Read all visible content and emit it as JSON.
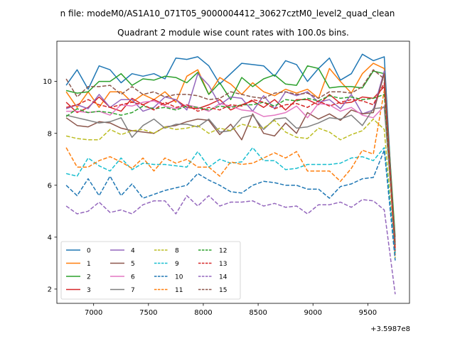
{
  "suptitle": "n file: modeM0/AS1A10_071T05_9000004412_30627cztM0_level2_quad_clean",
  "chart_data": {
    "type": "line",
    "title": "Quadrant 2 module wise count rates with 100.0s bins.",
    "xlabel": "",
    "ylabel": "",
    "x_offset_label": "+3.5987e8",
    "xlim": [
      6665,
      9880
    ],
    "ylim": [
      1.45,
      11.55
    ],
    "xticks": [
      7000,
      7500,
      8000,
      8500,
      9000,
      9500
    ],
    "yticks": [
      2,
      4,
      6,
      8,
      10
    ],
    "legend_position": "lower-left",
    "grid": false,
    "x": [
      6750,
      6850,
      6950,
      7050,
      7150,
      7250,
      7350,
      7450,
      7550,
      7650,
      7750,
      7850,
      7950,
      8050,
      8150,
      8250,
      8350,
      8450,
      8550,
      8650,
      8750,
      8850,
      8950,
      9050,
      9150,
      9250,
      9350,
      9450,
      9550,
      9650,
      9750
    ],
    "series": [
      {
        "name": "0",
        "color": "#1f77b4",
        "dash": "solid",
        "values": [
          9.85,
          10.45,
          9.7,
          10.6,
          10.45,
          9.95,
          10.3,
          10.2,
          10.3,
          10.1,
          10.9,
          10.85,
          10.95,
          10.6,
          9.9,
          10.3,
          10.7,
          10.65,
          10.6,
          10.2,
          10.8,
          10.65,
          10.0,
          10.5,
          10.9,
          10.05,
          10.3,
          11.05,
          10.8,
          10.95,
          3.4
        ]
      },
      {
        "name": "1",
        "color": "#ff7f0e",
        "dash": "solid",
        "values": [
          9.6,
          9.0,
          9.6,
          9.0,
          9.6,
          9.6,
          9.2,
          9.5,
          9.3,
          9.6,
          9.2,
          10.2,
          10.45,
          9.5,
          10.15,
          9.9,
          9.5,
          9.95,
          9.6,
          9.45,
          9.7,
          9.55,
          9.7,
          9.35,
          10.5,
          10.0,
          9.55,
          10.3,
          10.7,
          10.5,
          3.5
        ]
      },
      {
        "name": "2",
        "color": "#2ca02c",
        "dash": "solid",
        "values": [
          9.65,
          9.55,
          9.6,
          10.0,
          10.0,
          10.3,
          9.85,
          10.1,
          10.05,
          10.2,
          10.15,
          9.95,
          10.35,
          9.5,
          9.95,
          9.3,
          10.15,
          9.8,
          10.1,
          10.25,
          9.9,
          9.85,
          10.6,
          10.5,
          9.75,
          9.8,
          9.8,
          9.75,
          10.4,
          10.3,
          4.0
        ]
      },
      {
        "name": "3",
        "color": "#d62728",
        "dash": "solid",
        "values": [
          9.2,
          8.8,
          9.0,
          9.4,
          9.0,
          8.85,
          9.35,
          9.1,
          9.3,
          9.1,
          9.3,
          9.0,
          8.95,
          9.1,
          9.3,
          8.9,
          9.1,
          9.25,
          9.0,
          9.3,
          8.9,
          9.3,
          9.3,
          9.1,
          9.5,
          9.15,
          9.2,
          9.4,
          9.35,
          9.8,
          3.3
        ]
      },
      {
        "name": "4",
        "color": "#9467bd",
        "dash": "solid",
        "values": [
          8.95,
          9.1,
          8.95,
          9.5,
          9.0,
          9.3,
          9.3,
          8.85,
          9.0,
          9.4,
          9.3,
          8.9,
          10.3,
          9.85,
          9.1,
          9.4,
          9.35,
          8.85,
          9.45,
          8.95,
          9.6,
          9.45,
          9.6,
          9.2,
          9.3,
          8.95,
          9.5,
          8.75,
          8.9,
          10.4,
          3.6
        ]
      },
      {
        "name": "5",
        "color": "#8c564b",
        "dash": "solid",
        "values": [
          8.6,
          8.3,
          8.25,
          8.45,
          8.4,
          8.2,
          8.1,
          8.05,
          8.0,
          8.25,
          8.3,
          8.45,
          8.55,
          8.5,
          7.95,
          8.35,
          7.75,
          8.75,
          8.0,
          7.9,
          8.4,
          8.0,
          8.8,
          8.55,
          8.75,
          8.5,
          8.9,
          8.75,
          8.8,
          10.3,
          3.5
        ]
      },
      {
        "name": "6",
        "color": "#e377c2",
        "dash": "solid",
        "values": [
          8.85,
          8.85,
          8.8,
          8.85,
          8.7,
          9.1,
          9.05,
          9.2,
          9.25,
          9.05,
          8.95,
          9.1,
          9.0,
          8.85,
          9.15,
          9.05,
          8.9,
          8.85,
          8.65,
          8.7,
          8.8,
          9.05,
          8.6,
          9.15,
          9.1,
          8.85,
          9.0,
          8.7,
          8.6,
          9.05,
          3.9
        ]
      },
      {
        "name": "7",
        "color": "#7f7f7f",
        "dash": "solid",
        "values": [
          8.7,
          8.6,
          8.5,
          8.4,
          8.45,
          8.6,
          7.85,
          8.3,
          8.55,
          8.2,
          8.35,
          8.35,
          8.25,
          8.55,
          8.05,
          8.1,
          8.6,
          8.7,
          8.15,
          8.55,
          8.6,
          8.2,
          8.25,
          8.4,
          8.6,
          8.55,
          8.7,
          8.3,
          8.95,
          9.0,
          3.8
        ]
      },
      {
        "name": "8",
        "color": "#bcbd22",
        "dash": "dashed",
        "values": [
          7.9,
          7.8,
          7.75,
          7.75,
          8.15,
          7.95,
          8.1,
          8.15,
          8.0,
          8.25,
          8.15,
          8.2,
          8.3,
          8.0,
          8.2,
          8.1,
          8.35,
          8.25,
          8.2,
          8.5,
          8.05,
          7.85,
          7.8,
          8.2,
          8.05,
          7.75,
          7.95,
          8.1,
          8.55,
          8.15,
          3.2
        ]
      },
      {
        "name": "9",
        "color": "#17becf",
        "dash": "dashed",
        "values": [
          6.45,
          6.35,
          7.05,
          6.75,
          6.55,
          7.05,
          6.6,
          6.85,
          6.8,
          6.8,
          6.75,
          6.7,
          7.3,
          6.7,
          7.0,
          6.85,
          6.9,
          7.45,
          6.95,
          6.95,
          6.6,
          6.65,
          6.8,
          6.8,
          6.8,
          6.85,
          7.05,
          7.1,
          6.95,
          7.45,
          3.4
        ]
      },
      {
        "name": "10",
        "color": "#1f77b4",
        "dash": "dashed",
        "values": [
          6.0,
          5.6,
          6.25,
          5.6,
          6.35,
          5.6,
          6.05,
          5.5,
          5.65,
          5.8,
          5.9,
          6.0,
          6.45,
          6.2,
          6.0,
          5.75,
          5.7,
          6.0,
          6.15,
          6.1,
          6.0,
          6.0,
          5.85,
          5.85,
          5.5,
          5.95,
          6.05,
          6.25,
          6.3,
          7.35,
          3.1
        ]
      },
      {
        "name": "11",
        "color": "#ff7f0e",
        "dash": "dashed",
        "values": [
          7.45,
          6.7,
          6.7,
          6.95,
          7.1,
          6.9,
          6.65,
          7.05,
          6.55,
          7.05,
          6.85,
          7.0,
          6.7,
          6.7,
          6.35,
          6.9,
          6.8,
          6.85,
          7.05,
          7.25,
          7.05,
          7.3,
          6.55,
          6.55,
          6.55,
          6.15,
          6.65,
          7.35,
          7.2,
          9.65,
          3.6
        ]
      },
      {
        "name": "12",
        "color": "#2ca02c",
        "dash": "dashed",
        "values": [
          8.65,
          8.95,
          8.8,
          8.85,
          8.8,
          8.7,
          8.8,
          9.05,
          8.95,
          9.0,
          8.9,
          9.05,
          9.0,
          8.9,
          9.05,
          9.0,
          9.1,
          9.1,
          9.2,
          9.05,
          9.3,
          9.25,
          9.35,
          9.25,
          9.45,
          9.35,
          9.4,
          9.3,
          9.35,
          9.5,
          3.7
        ]
      },
      {
        "name": "13",
        "color": "#d62728",
        "dash": "dashed",
        "values": [
          9.0,
          9.1,
          9.3,
          9.1,
          9.0,
          9.1,
          9.2,
          9.1,
          8.9,
          9.2,
          9.0,
          9.1,
          8.85,
          9.0,
          8.9,
          9.1,
          9.05,
          9.3,
          9.2,
          8.95,
          9.1,
          9.15,
          9.0,
          9.25,
          9.05,
          9.2,
          9.3,
          9.25,
          9.1,
          9.95,
          3.5
        ]
      },
      {
        "name": "14",
        "color": "#9467bd",
        "dash": "dashed",
        "values": [
          5.2,
          4.9,
          5.0,
          5.35,
          4.95,
          5.05,
          4.9,
          5.25,
          5.4,
          5.4,
          4.9,
          5.6,
          5.2,
          5.6,
          5.2,
          5.35,
          5.35,
          5.4,
          5.2,
          5.3,
          5.15,
          5.2,
          4.9,
          5.25,
          5.25,
          5.35,
          5.15,
          5.45,
          5.4,
          5.05,
          1.8
        ]
      },
      {
        "name": "15",
        "color": "#8c564b",
        "dash": "dashed",
        "values": [
          10.1,
          9.4,
          9.8,
          9.8,
          9.85,
          9.5,
          9.8,
          9.5,
          9.6,
          9.4,
          9.5,
          9.5,
          9.45,
          9.3,
          9.35,
          9.6,
          9.5,
          9.4,
          9.35,
          9.55,
          9.6,
          9.5,
          9.55,
          9.35,
          9.6,
          9.6,
          9.55,
          9.8,
          10.45,
          10.1,
          3.7
        ]
      }
    ]
  }
}
